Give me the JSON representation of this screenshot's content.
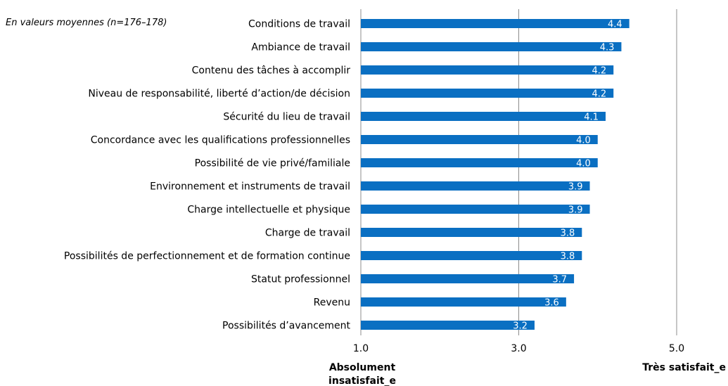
{
  "chart_data": {
    "type": "bar",
    "orientation": "horizontal",
    "note": "En valeurs moyennes (n=176–178)",
    "categories": [
      "Conditions de travail",
      "Ambiance de travail",
      "Contenu des tâches à accomplir",
      "Niveau de responsabilité, liberté d’action/de décision",
      "Sécurité du lieu de travail",
      "Concordance avec les qualifications professionnelles",
      "Possibilité de vie privé/familiale",
      "Environnement et instruments de travail",
      "Charge intellectuelle et physique",
      "Charge de travail",
      "Possibilités de perfectionnement et de formation continue",
      "Statut professionnel",
      "Revenu",
      "Possibilités d’avancement"
    ],
    "values": [
      4.4,
      4.3,
      4.2,
      4.2,
      4.1,
      4.0,
      4.0,
      3.9,
      3.9,
      3.8,
      3.8,
      3.7,
      3.6,
      3.2
    ],
    "value_labels": [
      "4.4",
      "4.3",
      "4.2",
      "4.2",
      "4.1",
      "4.0",
      "4.0",
      "3.9",
      "3.9",
      "3.8",
      "3.8",
      "3.7",
      "3.6",
      "3.2"
    ],
    "xlim": [
      1.0,
      5.0
    ],
    "xticks": [
      1.0,
      3.0,
      5.0
    ],
    "xtick_labels": [
      "1.0",
      "3.0",
      "5.0"
    ],
    "grid": "vertical",
    "scale_min_label": [
      "Absolument",
      "insatisfait_e"
    ],
    "scale_max_label": "Très satisfait_e",
    "colors": {
      "bar": "#0a6fc2",
      "bar_label": "#ffffff",
      "axis": "#8c8c8c",
      "text": "#000000"
    }
  }
}
